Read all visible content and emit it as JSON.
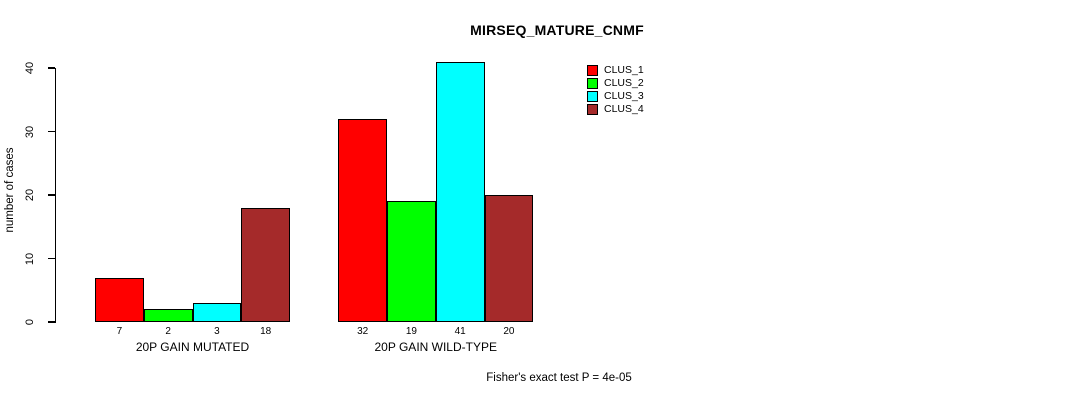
{
  "chart_data": {
    "type": "bar",
    "title": "MIRSEQ_MATURE_CNMF",
    "ylabel": "number of cases",
    "xlabel": "",
    "categories": [
      "20P GAIN MUTATED",
      "20P GAIN WILD-TYPE"
    ],
    "series": [
      {
        "name": "CLUS_1",
        "color": "#FF0000",
        "values": [
          7,
          32
        ]
      },
      {
        "name": "CLUS_2",
        "color": "#00FF00",
        "values": [
          2,
          19
        ]
      },
      {
        "name": "CLUS_3",
        "color": "#00FFFF",
        "values": [
          3,
          41
        ]
      },
      {
        "name": "CLUS_4",
        "color": "#A52A2A",
        "values": [
          18,
          20
        ]
      }
    ],
    "yticks": [
      "0",
      "10",
      "20",
      "30",
      "40"
    ],
    "ylim": [
      0,
      40
    ],
    "grid": false,
    "bar_value_labels": true,
    "legend_position": "top-right",
    "legend_entries": [
      "CLUS_1",
      "CLUS_2",
      "CLUS_3",
      "CLUS_4"
    ],
    "annotation": "Fisher's exact test P = 4e-05"
  }
}
